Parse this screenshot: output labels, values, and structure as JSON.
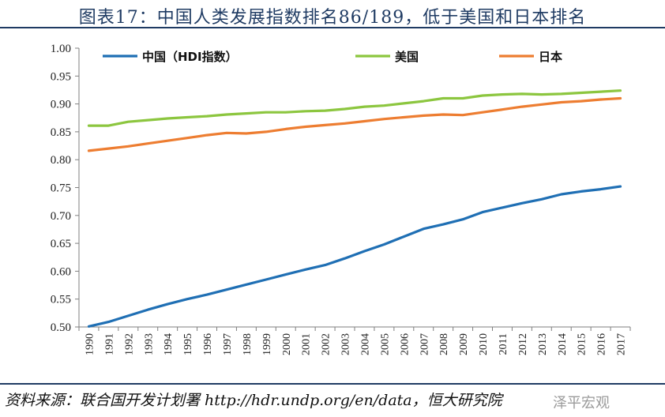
{
  "title": "图表17：中国人类发展指数排名86/189，低于美国和日本排名",
  "source": "资料来源：联合国开发计划署 http://hdr.undp.org/en/data，恒大研究院",
  "watermark": "泽平宏观",
  "chart_data": {
    "type": "line",
    "title": "图表17：中国人类发展指数排名86/189，低于美国和日本排名",
    "xlabel": "",
    "ylabel": "",
    "ylim": [
      0.5,
      1.0
    ],
    "yticks": [
      "0.50",
      "0.55",
      "0.60",
      "0.65",
      "0.70",
      "0.75",
      "0.80",
      "0.85",
      "0.90",
      "0.95",
      "1.00"
    ],
    "legend_position": "top",
    "categories": [
      "1990",
      "1991",
      "1992",
      "1993",
      "1994",
      "1995",
      "1996",
      "1997",
      "1998",
      "1999",
      "2000",
      "2001",
      "2002",
      "2003",
      "2004",
      "2005",
      "2006",
      "2007",
      "2008",
      "2009",
      "2010",
      "2011",
      "2012",
      "2013",
      "2014",
      "2015",
      "2016",
      "2017"
    ],
    "series": [
      {
        "name": "中国（HDI指数）",
        "color": "#1f6fb4",
        "values": [
          0.501,
          0.509,
          0.52,
          0.531,
          0.541,
          0.55,
          0.558,
          0.567,
          0.576,
          0.585,
          0.594,
          0.603,
          0.611,
          0.623,
          0.636,
          0.648,
          0.662,
          0.676,
          0.684,
          0.693,
          0.706,
          0.714,
          0.722,
          0.729,
          0.738,
          0.743,
          0.747,
          0.752
        ]
      },
      {
        "name": "美国",
        "color": "#8cc63f",
        "values": [
          0.861,
          0.861,
          0.868,
          0.871,
          0.874,
          0.876,
          0.878,
          0.881,
          0.883,
          0.885,
          0.885,
          0.887,
          0.888,
          0.891,
          0.895,
          0.897,
          0.901,
          0.905,
          0.91,
          0.91,
          0.915,
          0.917,
          0.918,
          0.917,
          0.918,
          0.92,
          0.922,
          0.924
        ]
      },
      {
        "name": "日本",
        "color": "#ed7d31",
        "values": [
          0.816,
          0.82,
          0.824,
          0.829,
          0.834,
          0.839,
          0.844,
          0.848,
          0.847,
          0.85,
          0.855,
          0.859,
          0.862,
          0.865,
          0.869,
          0.873,
          0.876,
          0.879,
          0.881,
          0.88,
          0.885,
          0.89,
          0.895,
          0.899,
          0.903,
          0.905,
          0.908,
          0.91
        ]
      }
    ]
  }
}
